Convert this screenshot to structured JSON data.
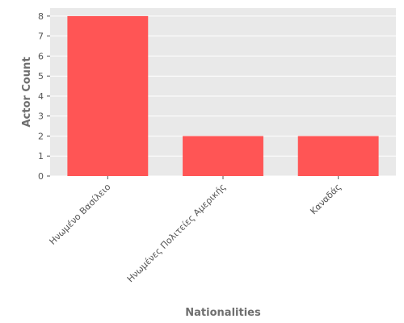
{
  "chart_data": {
    "type": "bar",
    "categories": [
      "Ηνωμένο Βασίλειο",
      "Ηνωμένες Πολιτείες Αμερικής",
      "Καναδάς"
    ],
    "values": [
      8,
      2,
      2
    ],
    "xlabel": "Nationalities",
    "ylabel": "Actor Count",
    "ylim": [
      0,
      8.4
    ],
    "yticks": [
      0,
      1,
      2,
      3,
      4,
      5,
      6,
      7,
      8
    ],
    "grid": true,
    "bar_color": "#ff5555",
    "plot_background": "#e9e9e9",
    "grid_color": "#ffffff"
  }
}
